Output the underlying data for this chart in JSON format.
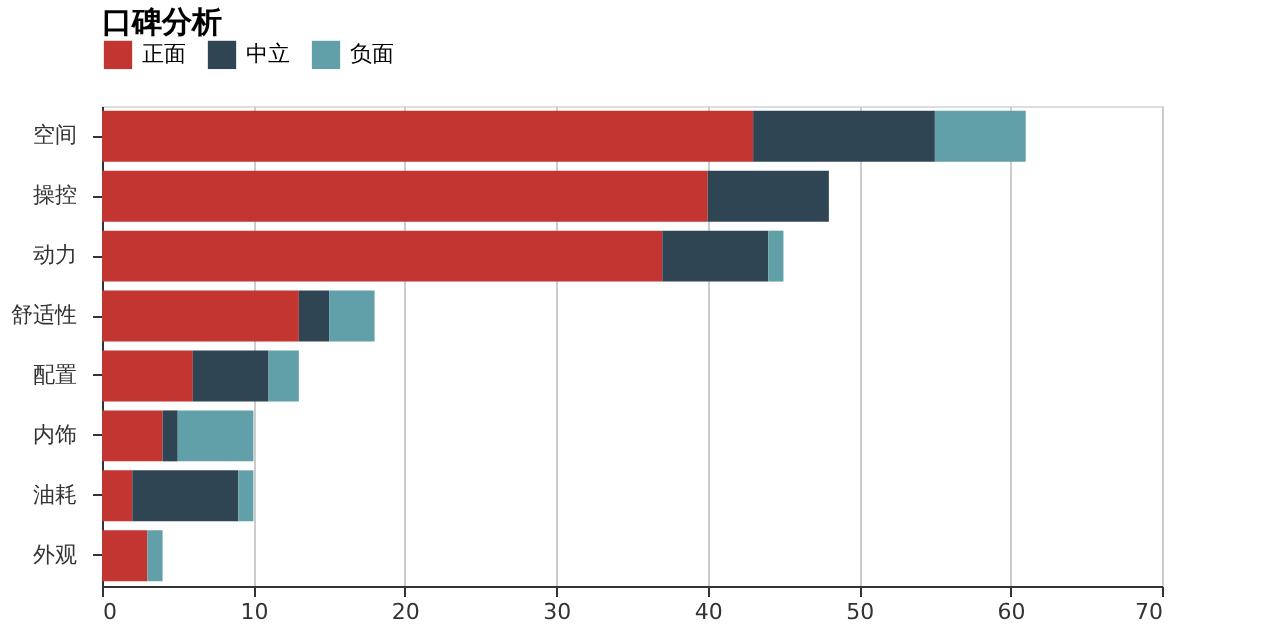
{
  "chart_data": {
    "type": "bar",
    "title": "口碑分析",
    "orientation": "horizontal",
    "stacked": true,
    "categories": [
      "空间",
      "操控",
      "动力",
      "舒适性",
      "配置",
      "内饰",
      "油耗",
      "外观"
    ],
    "series": [
      {
        "name": "正面",
        "color": "#c23531",
        "values": [
          43,
          40,
          37,
          13,
          6,
          4,
          2,
          3
        ]
      },
      {
        "name": "中立",
        "color": "#2f4554",
        "values": [
          12,
          8,
          7,
          2,
          5,
          1,
          7,
          0
        ]
      },
      {
        "name": "负面",
        "color": "#61a0a8",
        "values": [
          6,
          0,
          1,
          3,
          2,
          5,
          1,
          1
        ]
      }
    ],
    "xlim": [
      0,
      70
    ],
    "xticks": [
      0,
      10,
      20,
      30,
      40,
      50,
      60,
      70
    ],
    "grid": "x",
    "legend": "top"
  }
}
